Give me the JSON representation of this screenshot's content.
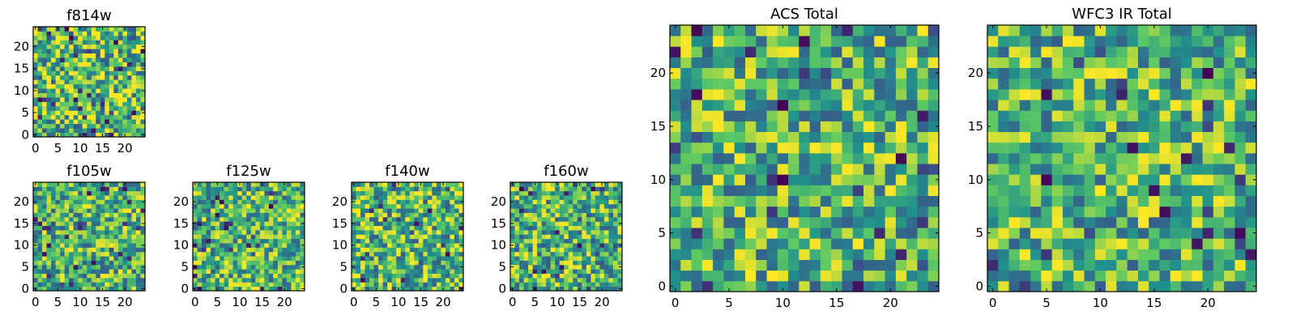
{
  "chart_data": [
    {
      "type": "heatmap",
      "title": "f814w",
      "grid": [
        25,
        25
      ],
      "xlim": [
        0,
        25
      ],
      "ylim": [
        0,
        25
      ],
      "xticks": [
        0,
        5,
        10,
        15,
        20
      ],
      "yticks": [
        0,
        5,
        10,
        15,
        20
      ],
      "seed": 11,
      "contrast": 0.95
    },
    {
      "type": "heatmap",
      "title": "f105w",
      "grid": [
        25,
        25
      ],
      "xlim": [
        0,
        25
      ],
      "ylim": [
        0,
        25
      ],
      "xticks": [
        0,
        5,
        10,
        15,
        20
      ],
      "yticks": [
        0,
        5,
        10,
        15,
        20
      ],
      "seed": 23,
      "contrast": 0.8
    },
    {
      "type": "heatmap",
      "title": "f125w",
      "grid": [
        25,
        25
      ],
      "xlim": [
        0,
        25
      ],
      "ylim": [
        0,
        25
      ],
      "xticks": [
        0,
        5,
        10,
        15,
        20
      ],
      "yticks": [
        0,
        5,
        10,
        15,
        20
      ],
      "seed": 37,
      "contrast": 0.8
    },
    {
      "type": "heatmap",
      "title": "f140w",
      "grid": [
        25,
        25
      ],
      "xlim": [
        0,
        25
      ],
      "ylim": [
        0,
        25
      ],
      "xticks": [
        0,
        5,
        10,
        15,
        20
      ],
      "yticks": [
        0,
        5,
        10,
        15,
        20
      ],
      "seed": 41,
      "contrast": 0.85
    },
    {
      "type": "heatmap",
      "title": "f160w",
      "grid": [
        25,
        25
      ],
      "xlim": [
        0,
        25
      ],
      "ylim": [
        0,
        25
      ],
      "xticks": [
        0,
        5,
        10,
        15,
        20
      ],
      "yticks": [
        0,
        5,
        10,
        15,
        20
      ],
      "seed": 53,
      "contrast": 0.85
    },
    {
      "type": "heatmap",
      "title": "ACS Total",
      "grid": [
        25,
        25
      ],
      "xlim": [
        0,
        25
      ],
      "ylim": [
        0,
        25
      ],
      "xticks": [
        0,
        5,
        10,
        15,
        20
      ],
      "yticks": [
        0,
        5,
        10,
        15,
        20
      ],
      "seed": 67,
      "contrast": 0.8
    },
    {
      "type": "heatmap",
      "title": "WFC3 IR Total",
      "grid": [
        25,
        25
      ],
      "xlim": [
        0,
        25
      ],
      "ylim": [
        0,
        25
      ],
      "xticks": [
        0,
        5,
        10,
        15,
        20
      ],
      "yticks": [
        0,
        5,
        10,
        15,
        20
      ],
      "seed": 79,
      "contrast": 0.8
    }
  ],
  "colormap": [
    "#440154",
    "#3b528b",
    "#21918c",
    "#5ec962",
    "#fde725"
  ]
}
